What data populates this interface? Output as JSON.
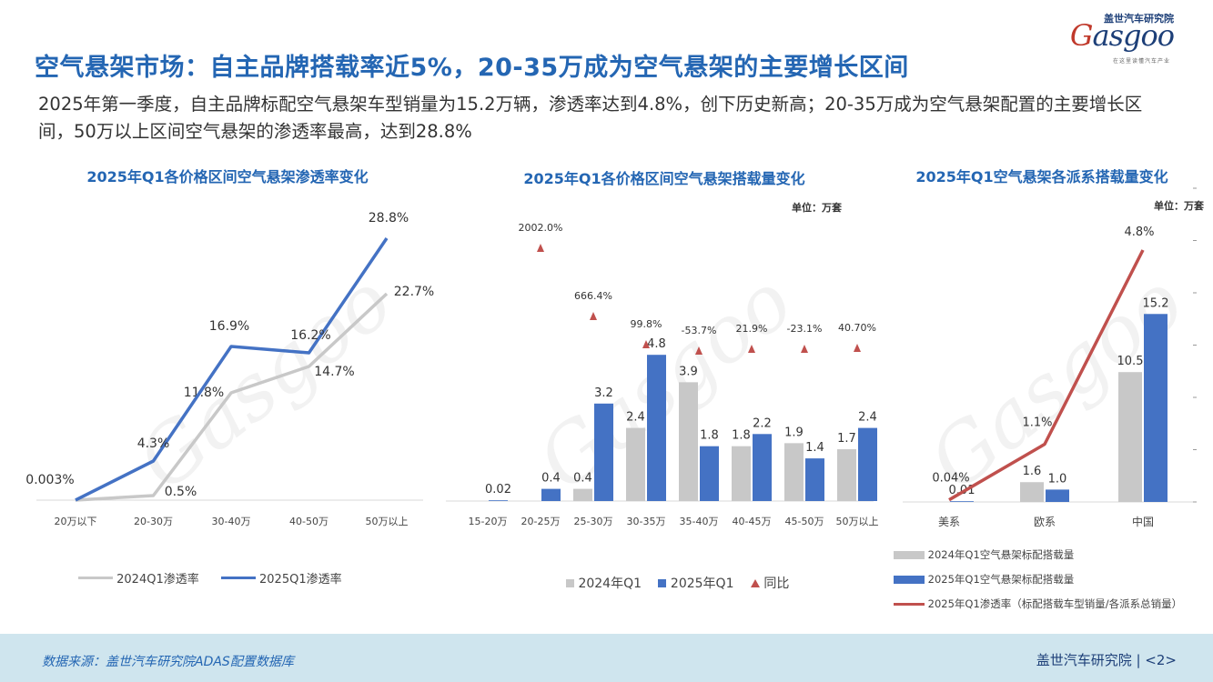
{
  "header": {
    "title": "空气悬架市场：自主品牌搭载率近5%，20-35万成为空气悬架的主要增长区间",
    "subtitle": "2025年第一季度，自主品牌标配空气悬架车型销量为15.2万辆，渗透率达到4.8%，创下历史新高；20-35万成为空气悬架配置的主要增长区间，50万以上区间空气悬架的渗透率最高，达到28.8%"
  },
  "logo": {
    "cn": "盖世汽车研究院",
    "en_first": "G",
    "en_rest": "asgoo",
    "tagline": "在这里读懂汽车产业"
  },
  "footer": {
    "source": "数据来源：盖世汽车研究院ADAS配置数据库",
    "brand": "盖世汽车研究院 | <2>"
  },
  "colors": {
    "gray": "#c8c8c8",
    "blue": "#4472c4",
    "red": "#c0504d",
    "title_blue": "#2466b3"
  },
  "chart_data": [
    {
      "type": "line",
      "title": "2025年Q1各价格区间空气悬架渗透率变化",
      "categories": [
        "20万以下",
        "20-30万",
        "30-40万",
        "40-50万",
        "50万以上"
      ],
      "series": [
        {
          "name": "2024Q1渗透率",
          "values": [
            0.0,
            0.5,
            11.8,
            14.7,
            22.7
          ],
          "labels": [
            "",
            "0.5%",
            "11.8%",
            "14.7%",
            "22.7%"
          ],
          "color": "#c8c8c8"
        },
        {
          "name": "2025Q1渗透率",
          "values": [
            0.003,
            4.3,
            16.9,
            16.2,
            28.8
          ],
          "labels": [
            "0.003%",
            "4.3%",
            "16.9%",
            "16.2%",
            "28.8%"
          ],
          "color": "#4472c4"
        }
      ],
      "ylim": [
        0,
        30
      ],
      "legend": "bottom"
    },
    {
      "type": "bar",
      "title": "2025年Q1各价格区间空气悬架搭载量变化",
      "unit": "单位：万套",
      "categories": [
        "15-20万",
        "20-25万",
        "25-30万",
        "30-35万",
        "35-40万",
        "40-45万",
        "45-50万",
        "50万以上"
      ],
      "series": [
        {
          "name": "2024年Q1",
          "values": [
            null,
            null,
            0.4,
            2.4,
            3.9,
            1.8,
            1.9,
            1.7
          ],
          "labels": [
            "",
            "",
            "0.4",
            "2.4",
            "3.9",
            "1.8",
            "1.9",
            "1.7"
          ],
          "color": "#c8c8c8"
        },
        {
          "name": "2025年Q1",
          "values": [
            0.02,
            0.4,
            3.2,
            4.8,
            1.8,
            2.2,
            1.4,
            2.4
          ],
          "labels": [
            "0.02",
            "0.4",
            "3.2",
            "4.8",
            "1.8",
            "2.2",
            "1.4",
            "2.4"
          ],
          "color": "#4472c4"
        }
      ],
      "yoy": {
        "name": "同比",
        "values": [
          null,
          2002.0,
          666.4,
          99.8,
          -53.7,
          21.9,
          -23.1,
          40.7
        ],
        "labels": [
          "",
          "2002.0%",
          "666.4%",
          "99.8%",
          "-53.7%",
          "21.9%",
          "-23.1%",
          "40.70%"
        ],
        "color": "#c0504d"
      },
      "ylim": [
        0,
        6
      ],
      "legend": "bottom"
    },
    {
      "type": "bar",
      "title": "2025年Q1空气悬架各派系搭载量变化",
      "unit": "单位：万套",
      "categories": [
        "美系",
        "欧系",
        "中国"
      ],
      "series": [
        {
          "name": "2024年Q1空气悬架标配搭载量",
          "values": [
            null,
            1.6,
            10.5
          ],
          "labels": [
            "",
            "1.6",
            "10.5"
          ],
          "color": "#c8c8c8"
        },
        {
          "name": "2025年Q1空气悬架标配搭载量",
          "values": [
            0.01,
            1.0,
            15.2
          ],
          "labels": [
            "0.01",
            "1.0",
            "15.2"
          ],
          "color": "#4472c4"
        }
      ],
      "line": {
        "name": "2025年Q1渗透率（标配搭载车型销量/各派系总销量）",
        "values": [
          0.04,
          1.1,
          4.8
        ],
        "labels": [
          "0.04%",
          "1.1%",
          "4.8%"
        ],
        "color": "#c0504d"
      },
      "ylim": [
        0,
        20
      ],
      "legend": "bottom"
    }
  ]
}
